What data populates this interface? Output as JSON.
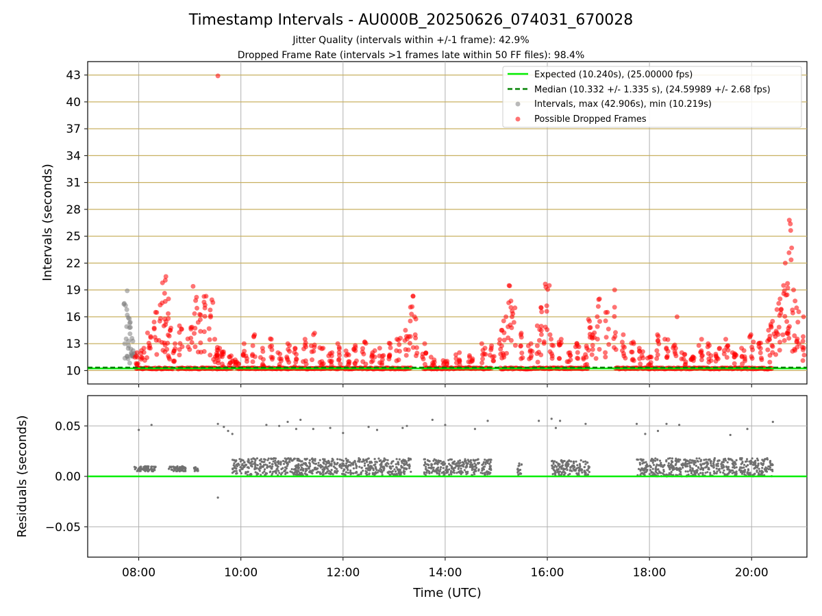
{
  "title": "Timestamp Intervals - AU000B_20250626_074031_670028",
  "subtitle_1": "Jitter Quality (intervals within +/-1 frame): 42.9%",
  "subtitle_2": "Dropped Frame Rate (intervals >1 frames late within 50 FF files): 98.4%",
  "colors": {
    "expected": "#00ee00",
    "median": "#008000",
    "intervals": "#808080",
    "dropped": "#ff0000",
    "hgrid_top": "#c8b060",
    "grid": "#b0b0b0",
    "residual_points": "#707070",
    "residual_zero": "#00ee00"
  },
  "chart_data": [
    {
      "type": "scatter",
      "panel": "top",
      "ylabel": "Intervals (seconds)",
      "xlim": [
        "07:00",
        "21:05"
      ],
      "ylim": [
        8.5,
        44.5
      ],
      "y_ticks": [
        10,
        13,
        16,
        19,
        22,
        25,
        28,
        31,
        34,
        37,
        40,
        43
      ],
      "x_ticks": [
        "08:00",
        "10:00",
        "12:00",
        "14:00",
        "16:00",
        "18:00",
        "20:00"
      ],
      "grid": true,
      "legend_position": "top-right",
      "legend": [
        {
          "label": "Expected (10.240s), (25.00000 fps)",
          "style": "line"
        },
        {
          "label": "Median (10.332 +/- 1.335 s), (24.59989 +/- 2.68 fps)",
          "style": "dashed"
        },
        {
          "label": "Intervals, max (42.906s), min (10.219s)",
          "style": "dot-gray"
        },
        {
          "label": "Possible Dropped Frames",
          "style": "dot-red"
        }
      ],
      "expected_value": 10.24,
      "median_value": 10.332,
      "series": [
        {
          "name": "Intervals, max (42.906s), min (10.219s)",
          "kind": "gray",
          "x": [
            "07:45",
            "07:46",
            "07:47",
            "07:48",
            "07:49",
            "07:50",
            "07:51",
            "07:52",
            "07:53",
            "07:55",
            "07:45",
            "07:47"
          ],
          "y": [
            17.5,
            18.9,
            15.3,
            16.2,
            14.8,
            15.9,
            14.1,
            13.6,
            12.4,
            11.8,
            13.0,
            16.8
          ]
        },
        {
          "name": "Possible Dropped Frames",
          "kind": "red",
          "x": [
            "07:58",
            "08:05",
            "08:12",
            "08:20",
            "08:26",
            "08:30",
            "08:33",
            "08:36",
            "08:42",
            "08:50",
            "09:00",
            "09:06",
            "09:12",
            "09:18",
            "09:25",
            "09:30",
            "09:34",
            "09:40",
            "09:48",
            "09:55",
            "10:05",
            "10:15",
            "10:25",
            "10:35",
            "10:45",
            "10:55",
            "11:05",
            "11:15",
            "11:25",
            "11:35",
            "11:45",
            "11:55",
            "12:05",
            "12:15",
            "12:25",
            "12:35",
            "12:45",
            "12:55",
            "13:05",
            "13:15",
            "13:20",
            "13:25",
            "13:35",
            "13:45",
            "14:00",
            "14:15",
            "14:30",
            "14:45",
            "14:55",
            "15:05",
            "15:10",
            "15:15",
            "15:20",
            "15:30",
            "15:40",
            "15:50",
            "15:55",
            "16:00",
            "16:05",
            "16:15",
            "16:25",
            "16:35",
            "16:45",
            "16:50",
            "16:55",
            "17:00",
            "17:10",
            "17:20",
            "17:30",
            "17:40",
            "17:50",
            "18:00",
            "18:10",
            "18:20",
            "18:30",
            "18:40",
            "18:50",
            "19:00",
            "19:10",
            "19:20",
            "19:30",
            "19:40",
            "19:50",
            "20:00",
            "20:10",
            "20:20",
            "20:25",
            "20:30",
            "20:35",
            "20:40",
            "20:42",
            "20:45",
            "20:50",
            "20:55",
            "21:00",
            "09:33"
          ],
          "y": [
            12.0,
            12.5,
            14.2,
            16.5,
            19.8,
            20.5,
            18.0,
            14.5,
            13.0,
            15.0,
            14.8,
            19.4,
            16.2,
            18.3,
            17.9,
            13.5,
            12.5,
            12.0,
            11.5,
            11.2,
            13.0,
            14.0,
            12.5,
            13.5,
            12.0,
            13.0,
            12.5,
            13.5,
            14.0,
            12.5,
            12.0,
            13.0,
            12.2,
            12.8,
            13.2,
            12.0,
            12.5,
            13.0,
            13.5,
            14.5,
            18.3,
            16.0,
            13.0,
            11.5,
            11.0,
            12.0,
            11.5,
            13.0,
            12.5,
            14.5,
            16.0,
            19.5,
            17.0,
            14.0,
            13.0,
            15.0,
            17.0,
            19.5,
            14.0,
            13.5,
            12.0,
            13.0,
            12.5,
            15.5,
            14.0,
            18.0,
            16.5,
            19.0,
            14.0,
            13.0,
            12.5,
            11.5,
            14.0,
            13.5,
            16.0,
            12.0,
            11.5,
            13.5,
            13.0,
            12.5,
            13.5,
            12.0,
            12.5,
            14.0,
            13.0,
            14.5,
            15.5,
            17.5,
            18.0,
            19.5,
            22.0,
            26.8,
            19.0,
            17.0,
            16.0,
            42.9
          ]
        },
        {
          "name": "baseline",
          "kind": "red-band",
          "x_ranges": [
            [
              "07:57",
              "08:40"
            ],
            [
              "08:45",
              "09:50"
            ],
            [
              "09:55",
              "13:20"
            ],
            [
              "13:35",
              "14:55"
            ],
            [
              "15:05",
              "16:05"
            ],
            [
              "16:05",
              "16:48"
            ],
            [
              "17:20",
              "17:48"
            ],
            [
              "17:50",
              "20:25"
            ]
          ],
          "y": 10.24
        }
      ]
    },
    {
      "type": "scatter",
      "panel": "bottom",
      "xlabel": "Time (UTC)",
      "ylabel": "Residuals (seconds)",
      "xlim": [
        "07:00",
        "21:05"
      ],
      "ylim": [
        -0.08,
        0.08
      ],
      "y_tick_labels": [
        "0.05",
        "0.00",
        "−0.05"
      ],
      "y_ticks": [
        0.05,
        0.0,
        -0.05
      ],
      "x_ticks": [
        "08:00",
        "10:00",
        "12:00",
        "14:00",
        "16:00",
        "18:00",
        "20:00"
      ],
      "grid": true,
      "zero_line": 0.0,
      "series": [
        {
          "name": "residuals",
          "clusters": [
            {
              "x": [
                "07:55",
                "08:20"
              ],
              "y": [
                0.005,
                0.01
              ]
            },
            {
              "x": [
                "08:35",
                "08:55"
              ],
              "y": [
                0.005,
                0.01
              ]
            },
            {
              "x": [
                "09:05",
                "09:10"
              ],
              "y": [
                0.005,
                0.009
              ]
            },
            {
              "x": [
                "09:50",
                "13:20"
              ],
              "y": [
                0.001,
                0.018
              ]
            },
            {
              "x": [
                "13:35",
                "14:55"
              ],
              "y": [
                0.001,
                0.017
              ]
            },
            {
              "x": [
                "15:25",
                "15:30"
              ],
              "y": [
                0.001,
                0.015
              ]
            },
            {
              "x": [
                "16:05",
                "16:50"
              ],
              "y": [
                0.001,
                0.016
              ]
            },
            {
              "x": [
                "17:45",
                "17:58"
              ],
              "y": [
                0.001,
                0.017
              ]
            },
            {
              "x": [
                "18:00",
                "20:25"
              ],
              "y": [
                0.0,
                0.018
              ]
            }
          ],
          "outliers_x": [
            "08:00",
            "08:15",
            "09:33",
            "09:40",
            "09:45",
            "09:50",
            "10:30",
            "10:45",
            "10:55",
            "11:05",
            "11:10",
            "11:25",
            "11:45",
            "12:00",
            "12:30",
            "12:40",
            "13:10",
            "13:15",
            "13:45",
            "14:00",
            "14:35",
            "14:50",
            "15:50",
            "16:05",
            "16:10",
            "16:15",
            "16:45",
            "17:45",
            "17:55",
            "18:10",
            "18:20",
            "18:35",
            "19:35",
            "19:55",
            "20:25",
            "09:33"
          ],
          "outliers_y": [
            0.046,
            0.051,
            0.052,
            0.049,
            0.045,
            0.042,
            0.051,
            0.05,
            0.054,
            0.047,
            0.056,
            0.047,
            0.048,
            0.043,
            0.049,
            0.046,
            0.048,
            0.05,
            0.056,
            0.051,
            0.047,
            0.055,
            0.055,
            0.057,
            0.048,
            0.055,
            0.052,
            0.052,
            0.042,
            0.045,
            0.052,
            0.051,
            0.041,
            0.047,
            0.054,
            -0.021
          ]
        }
      ]
    }
  ]
}
